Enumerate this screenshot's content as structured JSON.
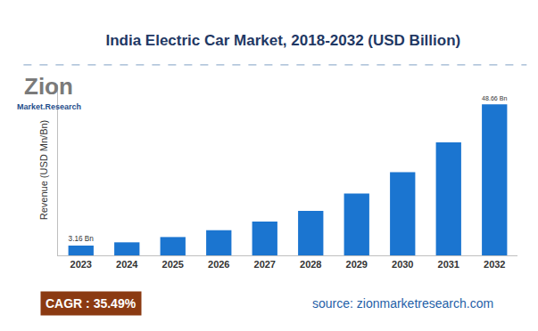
{
  "chart_data": {
    "type": "bar",
    "title": "India Electric Car Market, 2018-2032 (USD Billion)",
    "y_label": "Revenue (USD Mn/Bn)",
    "categories": [
      "2023",
      "2024",
      "2025",
      "2026",
      "2027",
      "2028",
      "2029",
      "2030",
      "2031",
      "2032"
    ],
    "values": [
      3.16,
      4.2,
      5.9,
      8.1,
      10.9,
      14.3,
      19.9,
      26.8,
      36.4,
      48.66
    ],
    "value_labels": [
      "3.16 Bn",
      null,
      null,
      null,
      null,
      null,
      null,
      null,
      null,
      "48.66 Bn"
    ],
    "data_labels": true,
    "color": "#1b75d0",
    "ylim": [
      0,
      55
    ],
    "yticks": [],
    "tick_labels": "x",
    "grid": false,
    "annotations": [
      {
        "text": "Zion"
      },
      {
        "text": "Market.Research"
      },
      {
        "text": "CAGR : 35.49%"
      },
      {
        "text": "source: zionmarketresearch.com"
      }
    ]
  }
}
